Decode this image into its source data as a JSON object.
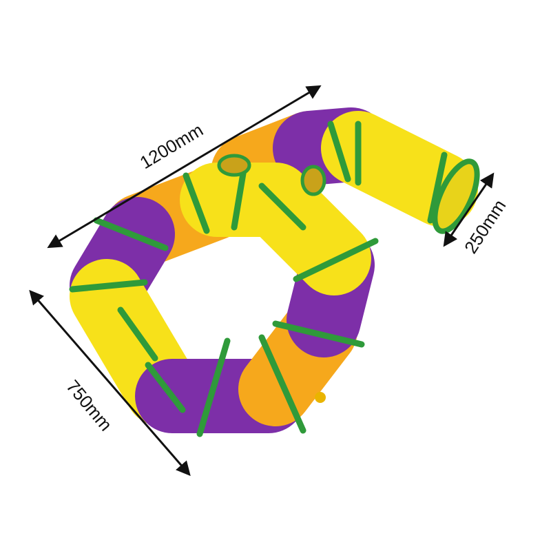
{
  "dimensions": {
    "length": "1200mm",
    "diameter": "250mm",
    "width": "750mm"
  }
}
